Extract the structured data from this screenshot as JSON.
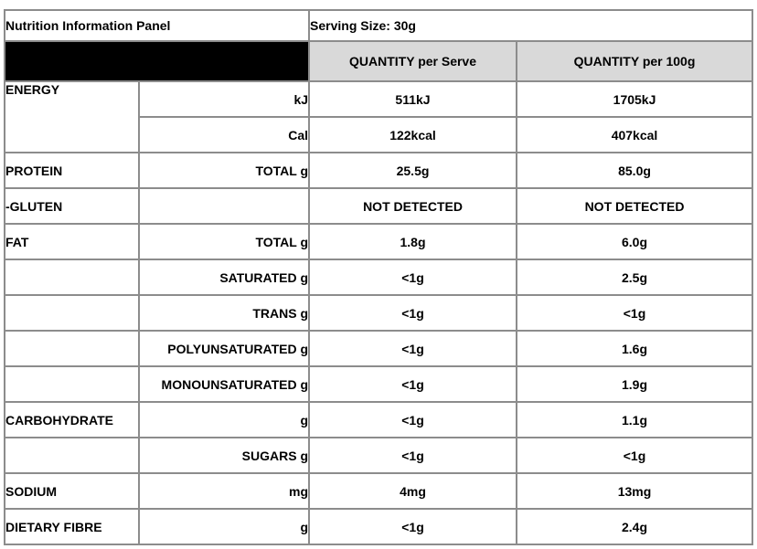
{
  "table": {
    "title": "Nutrition Information Panel",
    "serving_size": "Serving Size: 30g",
    "col_headers": {
      "per_serve": "QUANTITY per Serve",
      "per_100g": "QUANTITY per 100g"
    },
    "colors": {
      "header_band": "#000000",
      "header_fill": "#d9d9d9",
      "grid_line": "#8c8c8c",
      "text": "#000000"
    },
    "rows": [
      {
        "label": "ENERGY",
        "unit": "kJ",
        "per_serve": "511kJ",
        "per_100g": "1705kJ"
      },
      {
        "label": "",
        "unit": "Cal",
        "per_serve": "122kcal",
        "per_100g": "407kcal"
      },
      {
        "label": "PROTEIN",
        "unit": "TOTAL g",
        "per_serve": "25.5g",
        "per_100g": "85.0g"
      },
      {
        "label": "-GLUTEN",
        "unit": "",
        "per_serve": "NOT DETECTED",
        "per_100g": "NOT DETECTED"
      },
      {
        "label": "FAT",
        "unit": "TOTAL g",
        "per_serve": "1.8g",
        "per_100g": "6.0g"
      },
      {
        "label": "",
        "unit": "SATURATED g",
        "per_serve": "<1g",
        "per_100g": "2.5g"
      },
      {
        "label": "",
        "unit": "TRANS g",
        "per_serve": "<1g",
        "per_100g": "<1g"
      },
      {
        "label": "",
        "unit": "POLYUNSATURATED g",
        "per_serve": "<1g",
        "per_100g": "1.6g"
      },
      {
        "label": "",
        "unit": "MONOUNSATURATED g",
        "per_serve": "<1g",
        "per_100g": "1.9g"
      },
      {
        "label": "CARBOHYDRATE",
        "unit": "g",
        "per_serve": "<1g",
        "per_100g": "1.1g"
      },
      {
        "label": "",
        "unit": "SUGARS g",
        "per_serve": "<1g",
        "per_100g": "<1g"
      },
      {
        "label": "SODIUM",
        "unit": "mg",
        "per_serve": "4mg",
        "per_100g": "13mg"
      },
      {
        "label": "DIETARY FIBRE",
        "unit": "g",
        "per_serve": "<1g",
        "per_100g": "2.4g"
      }
    ]
  }
}
